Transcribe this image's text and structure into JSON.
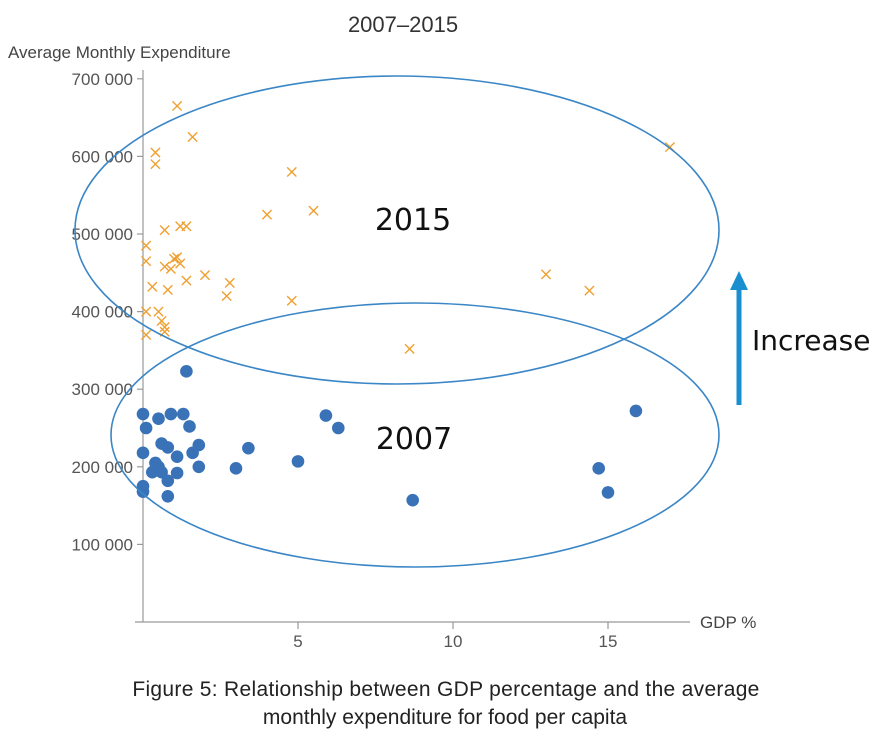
{
  "chart_data": {
    "type": "scatter",
    "title": "2007–2015",
    "xlabel": "GDP %",
    "ylabel": "Average Monthly Expenditure",
    "xlim": [
      0,
      18
    ],
    "ylim": [
      0,
      700000
    ],
    "x_ticks": [
      {
        "value": 5,
        "label": "5"
      },
      {
        "value": 10,
        "label": "10"
      },
      {
        "value": 15,
        "label": "15"
      }
    ],
    "y_ticks": [
      {
        "value": 100000,
        "label": "100 000"
      },
      {
        "value": 200000,
        "label": "200 000"
      },
      {
        "value": 300000,
        "label": "300 000"
      },
      {
        "value": 400000,
        "label": "400 000"
      },
      {
        "value": 500000,
        "label": "500 000"
      },
      {
        "value": 600000,
        "label": "600 000"
      },
      {
        "value": 700000,
        "label": "700 000"
      }
    ],
    "series": [
      {
        "label": "2015",
        "marker": "x",
        "color": "#f0a030",
        "points": [
          [
            1.1,
            665000
          ],
          [
            1.6,
            625000
          ],
          [
            0.4,
            605000
          ],
          [
            0.4,
            590000
          ],
          [
            4.8,
            580000
          ],
          [
            17,
            612000
          ],
          [
            5.5,
            530000
          ],
          [
            4.0,
            525000
          ],
          [
            1.2,
            510000
          ],
          [
            1.4,
            510000
          ],
          [
            0.7,
            505000
          ],
          [
            0.1,
            485000
          ],
          [
            0.1,
            465000
          ],
          [
            1.0,
            468000
          ],
          [
            1.1,
            470000
          ],
          [
            1.2,
            462000
          ],
          [
            0.7,
            458000
          ],
          [
            0.9,
            455000
          ],
          [
            2.0,
            447000
          ],
          [
            1.4,
            440000
          ],
          [
            2.8,
            437000
          ],
          [
            0.3,
            432000
          ],
          [
            0.8,
            428000
          ],
          [
            2.7,
            420000
          ],
          [
            13.0,
            448000
          ],
          [
            14.4,
            427000
          ],
          [
            4.8,
            414000
          ],
          [
            0.1,
            400000
          ],
          [
            0.5,
            400000
          ],
          [
            0.6,
            388000
          ],
          [
            0.7,
            380000
          ],
          [
            0.7,
            374000
          ],
          [
            0.1,
            370000
          ],
          [
            8.6,
            352000
          ]
        ]
      },
      {
        "label": "2007",
        "marker": "dot",
        "color": "#3a72b8",
        "points": [
          [
            1.4,
            323000
          ],
          [
            0.0,
            268000
          ],
          [
            0.5,
            262000
          ],
          [
            0.9,
            268000
          ],
          [
            1.3,
            268000
          ],
          [
            0.1,
            250000
          ],
          [
            1.5,
            252000
          ],
          [
            0.6,
            230000
          ],
          [
            0.8,
            225000
          ],
          [
            1.8,
            228000
          ],
          [
            0.0,
            218000
          ],
          [
            1.6,
            218000
          ],
          [
            1.1,
            213000
          ],
          [
            0.4,
            205000
          ],
          [
            0.5,
            200000
          ],
          [
            0.5,
            197000
          ],
          [
            0.3,
            193000
          ],
          [
            0.6,
            193000
          ],
          [
            1.1,
            192000
          ],
          [
            1.8,
            200000
          ],
          [
            0.8,
            182000
          ],
          [
            0.0,
            175000
          ],
          [
            0.0,
            168000
          ],
          [
            0.8,
            162000
          ],
          [
            3.0,
            198000
          ],
          [
            3.4,
            224000
          ],
          [
            5.0,
            207000
          ],
          [
            5.9,
            266000
          ],
          [
            6.3,
            250000
          ],
          [
            8.7,
            157000
          ],
          [
            14.7,
            198000
          ],
          [
            15.0,
            167000
          ],
          [
            15.9,
            272000
          ]
        ]
      }
    ],
    "annotations": {
      "ellipse_top_label": "2015",
      "ellipse_bottom_label": "2007",
      "arrow_label": "Increase",
      "arrow_color": "#1a8fd0",
      "ellipse_color": "#3b86c6"
    }
  },
  "caption": {
    "line1": "Figure 5: Relationship between GDP percentage and the average",
    "line2": "monthly expenditure for food per capita"
  }
}
